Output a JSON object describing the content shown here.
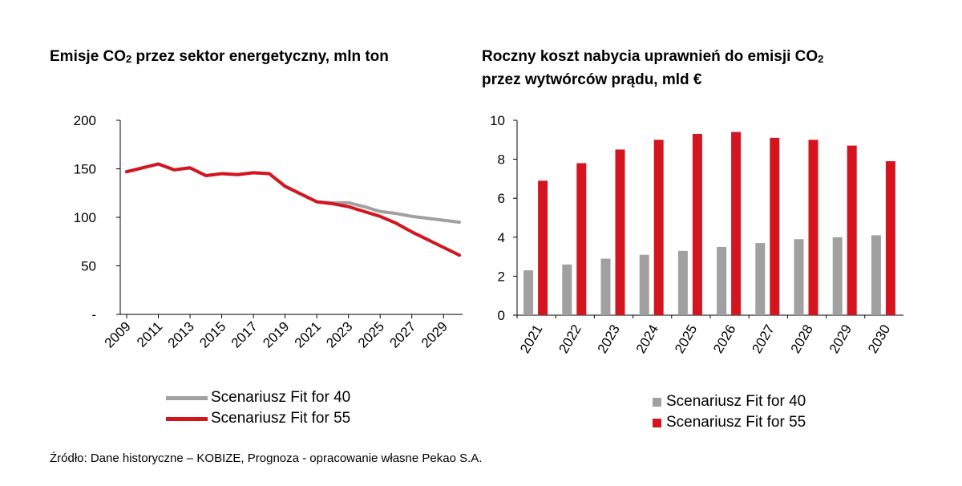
{
  "colors": {
    "fit40": "#a0a0a0",
    "fit55": "#d4151f",
    "axis": "#000000"
  },
  "charts": [
    {
      "title_main": "Emisje CO",
      "title_sub": "2",
      "title_rest": " przez sektor energetyczny, mln ton"
    },
    {
      "title_line1_main": "Roczny koszt nabycia uprawnień do emisji CO",
      "title_line1_sub": "2",
      "title_line2": "przez wytwórców prądu, mld €"
    }
  ],
  "legend": {
    "fit40": "Scenariusz Fit for 40",
    "fit55": "Scenariusz Fit for 55"
  },
  "source": "Źródło: Dane historyczne – KOBIZE, Prognoza - opracowanie własne Pekao S.A.",
  "chart_data": [
    {
      "type": "line",
      "x": [
        2009,
        2010,
        2011,
        2012,
        2013,
        2014,
        2015,
        2016,
        2017,
        2018,
        2019,
        2020,
        2021,
        2022,
        2023,
        2024,
        2025,
        2026,
        2027,
        2028,
        2029,
        2030
      ],
      "xtick_labels": [
        "2009",
        "2011",
        "2013",
        "2015",
        "2017",
        "2019",
        "2021",
        "2023",
        "2025",
        "2027",
        "2029"
      ],
      "ytick_labels": [
        "-",
        "50",
        "100",
        "150",
        "200"
      ],
      "ylim": [
        0,
        200
      ],
      "series": [
        {
          "name": "Scenariusz Fit for 40",
          "values": [
            147,
            151,
            155,
            149,
            151,
            143,
            145,
            144,
            146,
            145,
            132,
            124,
            116,
            115,
            115,
            111,
            106,
            104,
            101,
            99,
            97,
            95
          ]
        },
        {
          "name": "Scenariusz Fit for 55",
          "values": [
            147,
            151,
            155,
            149,
            151,
            143,
            145,
            144,
            146,
            145,
            132,
            124,
            116,
            114,
            111,
            106,
            101,
            94,
            85,
            77,
            69,
            61
          ]
        }
      ],
      "legend_position": "bottom"
    },
    {
      "type": "bar",
      "categories": [
        "2021",
        "2022",
        "2023",
        "2024",
        "2025",
        "2026",
        "2027",
        "2028",
        "2029",
        "2030"
      ],
      "ytick_labels": [
        "0",
        "2",
        "4",
        "6",
        "8",
        "10"
      ],
      "ylim": [
        0,
        10
      ],
      "series": [
        {
          "name": "Scenariusz Fit for 40",
          "values": [
            2.3,
            2.6,
            2.9,
            3.1,
            3.3,
            3.5,
            3.7,
            3.9,
            4.0,
            4.1
          ]
        },
        {
          "name": "Scenariusz Fit for 55",
          "values": [
            6.9,
            7.8,
            8.5,
            9.0,
            9.3,
            9.4,
            9.1,
            9.0,
            8.7,
            7.9
          ]
        }
      ],
      "legend_position": "bottom"
    }
  ]
}
